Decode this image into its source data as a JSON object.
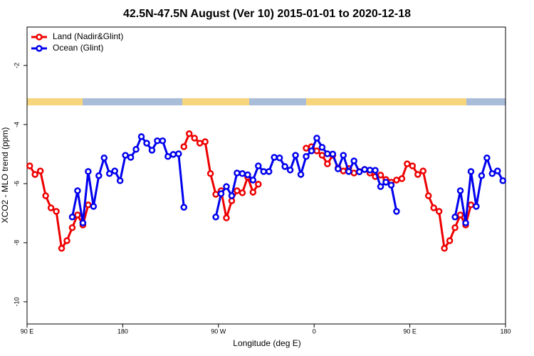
{
  "chart_data": {
    "type": "line",
    "title": "42.5N-47.5N August (Ver 10)   2015-01-01 to 2020-12-18",
    "x_label": "Longitude (deg E)",
    "y_label": "XCO2 - MLO trend (ppm)",
    "x": [
      92.5,
      97.5,
      102.5,
      107.5,
      112.5,
      117.5,
      122.5,
      127.5,
      132.5,
      137.5,
      142.5,
      147.5,
      152.5,
      157.5,
      162.5,
      167.5,
      172.5,
      177.5,
      182.5,
      187.5,
      192.5,
      197.5,
      202.5,
      207.5,
      212.5,
      217.5,
      222.5,
      227.5,
      232.5,
      237.5,
      242.5,
      247.5,
      252.5,
      257.5,
      262.5,
      267.5,
      272.5,
      277.5,
      282.5,
      287.5,
      292.5,
      297.5,
      302.5,
      307.5,
      312.5,
      317.5,
      322.5,
      327.5,
      332.5,
      337.5,
      342.5,
      347.5,
      352.5,
      357.5,
      362.5,
      367.5,
      372.5,
      377.5,
      382.5,
      387.5,
      392.5,
      397.5,
      402.5,
      407.5,
      412.5,
      417.5,
      422.5,
      427.5,
      432.5,
      437.5,
      442.5,
      447.5,
      452.5,
      457.5,
      462.5,
      467.5,
      472.5,
      477.5,
      482.5,
      487.5,
      492.5,
      497.5,
      502.5,
      507.5,
      512.5,
      517.5,
      522.5,
      527.5,
      532.5,
      537.5
    ],
    "series": [
      {
        "name": "Land (Nadir&Glint)",
        "color": "#ee0000",
        "values": [
          -5.4,
          -5.69,
          -5.57,
          -6.41,
          -6.82,
          -6.94,
          -8.19,
          -7.93,
          -7.49,
          -7.06,
          -7.4,
          -6.72,
          null,
          null,
          null,
          null,
          null,
          null,
          null,
          null,
          null,
          null,
          null,
          null,
          null,
          null,
          null,
          null,
          null,
          -4.75,
          -4.31,
          -4.46,
          -4.63,
          -4.58,
          -5.66,
          -6.36,
          -6.24,
          -7.16,
          -6.58,
          -6.24,
          -6.31,
          -5.78,
          -6.29,
          -6.02,
          null,
          null,
          null,
          null,
          null,
          null,
          null,
          null,
          -4.8,
          -4.75,
          -4.89,
          -5.04,
          -5.33,
          -5.04,
          -5.47,
          -5.57,
          -5.49,
          -5.64,
          -5.59,
          -5.52,
          -5.64,
          -5.76,
          -5.71,
          -5.86,
          -5.95,
          -5.88,
          -5.83,
          -5.33,
          -5.4,
          -5.69,
          -5.57,
          -6.41,
          -6.82,
          -6.94,
          -8.19,
          -7.93,
          -7.49,
          -7.06,
          -7.4,
          -6.72,
          null,
          null,
          null,
          null,
          null,
          null
        ]
      },
      {
        "name": "Ocean (Glint)",
        "color": "#0000ee",
        "values": [
          null,
          null,
          null,
          null,
          null,
          null,
          null,
          null,
          -7.13,
          -6.24,
          -7.33,
          -5.59,
          -6.77,
          -5.73,
          -5.13,
          -5.66,
          -5.57,
          -5.9,
          -5.04,
          -5.11,
          -4.84,
          -4.41,
          -4.63,
          -4.87,
          -4.55,
          -4.55,
          -5.08,
          -5.01,
          -4.99,
          -6.8,
          null,
          null,
          null,
          null,
          null,
          -7.13,
          -6.34,
          -6.1,
          -6.41,
          -5.64,
          -5.66,
          -5.7,
          -5.88,
          -5.4,
          -5.59,
          -5.59,
          -5.11,
          -5.13,
          -5.42,
          -5.54,
          -5.04,
          -5.69,
          -5.08,
          -4.89,
          -4.46,
          -4.77,
          -4.99,
          -5.0,
          -5.5,
          -5.04,
          -5.59,
          -5.23,
          -5.6,
          -5.52,
          -5.54,
          -5.55,
          -6.1,
          -5.95,
          -6.05,
          -6.94,
          null,
          null,
          null,
          null,
          null,
          null,
          null,
          null,
          null,
          null,
          -7.13,
          -6.24,
          -7.33,
          -5.59,
          -6.77,
          -5.73,
          -5.13,
          -5.66,
          -5.57,
          -5.9
        ]
      }
    ],
    "xlim": [
      90,
      540
    ],
    "xticks": [
      {
        "value": 90,
        "label": "90 E"
      },
      {
        "value": 180,
        "label": "180"
      },
      {
        "value": 270,
        "label": "90 W"
      },
      {
        "value": 360,
        "label": "0"
      },
      {
        "value": 450,
        "label": "90 E"
      },
      {
        "value": 540,
        "label": "180"
      }
    ],
    "ylim": [
      -10.75,
      -0.7
    ],
    "yticks": [
      -2,
      -4,
      -6,
      -8,
      -10
    ],
    "legend": "top-left"
  }
}
